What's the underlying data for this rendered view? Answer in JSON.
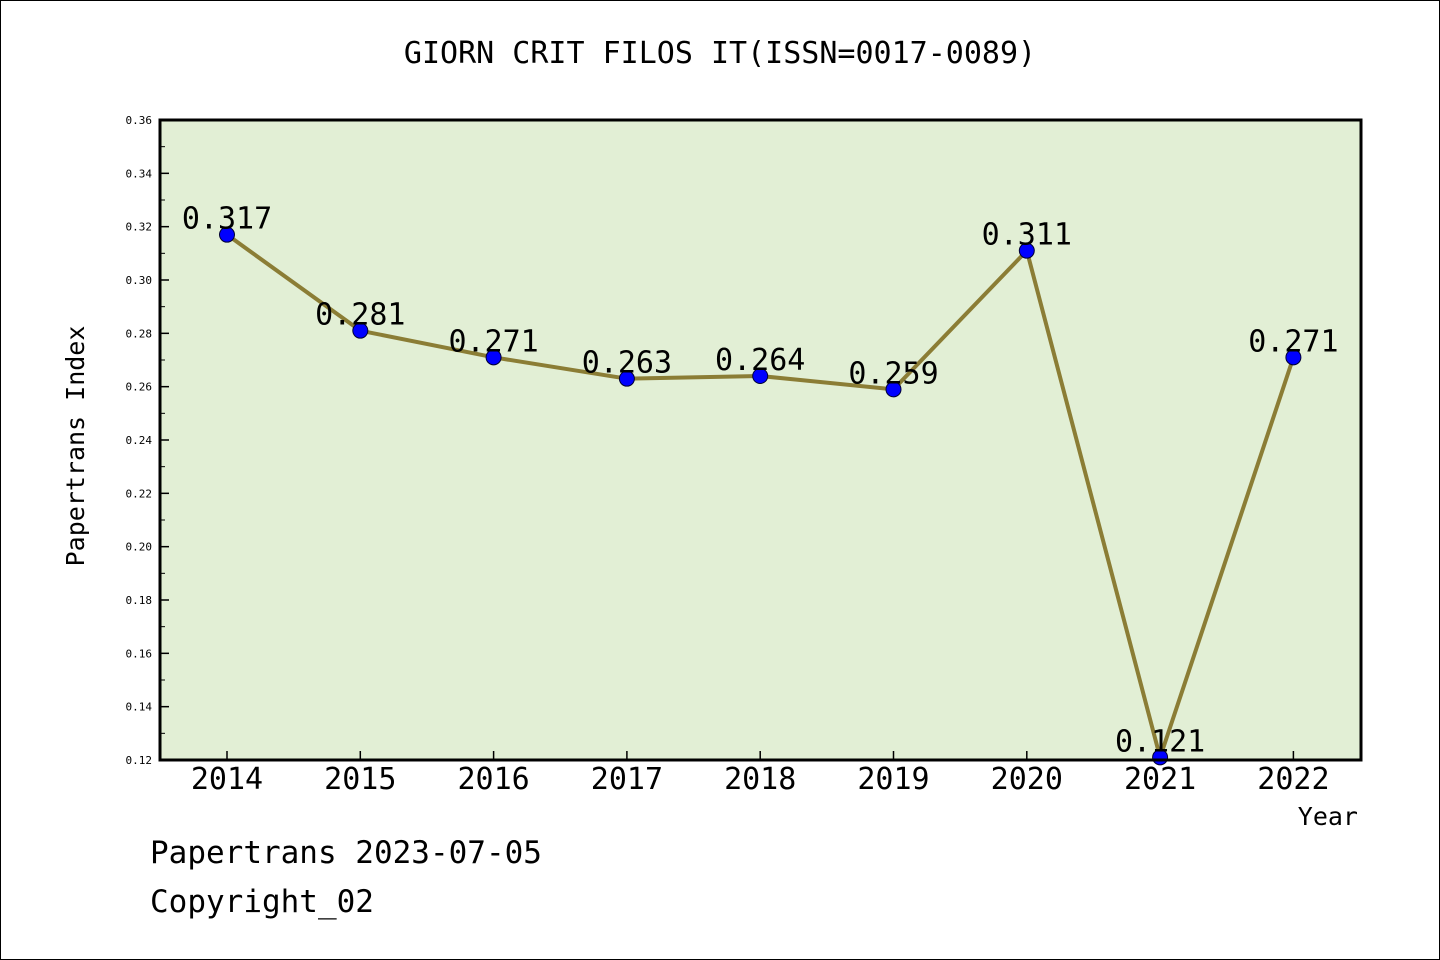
{
  "page_title": "GIORN CRIT FILOS IT(ISSN=0017-0089)",
  "footer": {
    "line1": "Papertrans 2023-07-05",
    "line2": "Copyright_02"
  },
  "colors": {
    "plot_background": "#e2efd5",
    "line": "#8b7d35",
    "marker": "#0000ff"
  },
  "chart_data": {
    "type": "line",
    "title": "GIORN CRIT FILOS IT(ISSN=0017-0089)",
    "xlabel": "Year",
    "ylabel": "Papertrans Index",
    "categories": [
      "2014",
      "2015",
      "2016",
      "2017",
      "2018",
      "2019",
      "2020",
      "2021",
      "2022"
    ],
    "series": [
      {
        "values": [
          0.317,
          0.281,
          0.271,
          0.263,
          0.264,
          0.259,
          0.311,
          0.121,
          0.271
        ],
        "labels": [
          "0.317",
          "0.281",
          "0.271",
          "0.263",
          "0.264",
          "0.259",
          "0.311",
          "0.121",
          "0.271"
        ]
      }
    ],
    "ylim": [
      0.12,
      0.36
    ],
    "yticks": [
      "0.12",
      "0.14",
      "0.16",
      "0.18",
      "0.20",
      "0.22",
      "0.24",
      "0.26",
      "0.28",
      "0.30",
      "0.32",
      "0.34",
      "0.36"
    ],
    "grid": false,
    "legend": "none"
  }
}
